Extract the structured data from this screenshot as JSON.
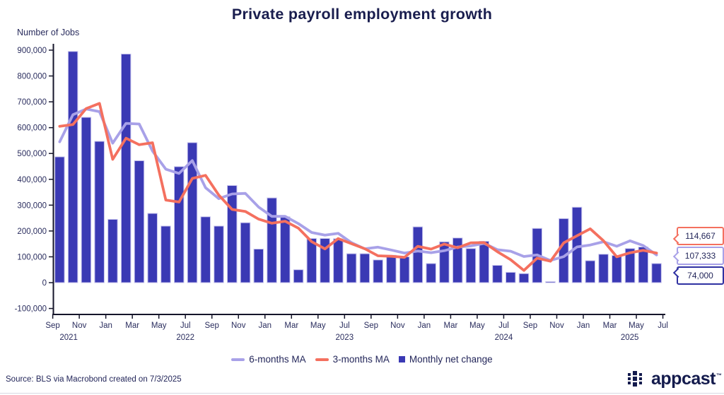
{
  "title": "Private payroll employment growth",
  "y_axis_title": "Number of Jobs",
  "source": "Source: BLS via Macrobond created on 7/3/2025",
  "colors": {
    "bar": "#3a39b4",
    "bar_outline": "#c8c5ee",
    "ma3_line": "#f4705f",
    "ma6_line": "#a8a1e8",
    "axis": "#15152a",
    "text": "#2a2d5e",
    "callout_monthly_border": "#2f31a2"
  },
  "legend": [
    {
      "label": "6-months MA",
      "marker": "line",
      "color": "#a8a1e8"
    },
    {
      "label": "3-months MA",
      "marker": "line",
      "color": "#f4705f"
    },
    {
      "label": "Monthly net change",
      "marker": "square",
      "color": "#3a39b4"
    }
  ],
  "callouts": [
    {
      "text": "114,667",
      "series": "3-months MA",
      "color": "#f4705f"
    },
    {
      "text": "107,333",
      "series": "6-months MA",
      "color": "#a8a1e8"
    },
    {
      "text": "74,000",
      "series": "Monthly net change",
      "color": "#2f31a2"
    }
  ],
  "logo": {
    "text": "appcast",
    "tm": "™"
  },
  "chart_data": {
    "type": "bar",
    "title": "Private payroll employment growth",
    "ylabel": "Number of Jobs",
    "ylim": [
      -100000,
      900000
    ],
    "y_tick_step": 100000,
    "grid": false,
    "legend_position": "bottom",
    "months": [
      "Sep 2021",
      "Oct 2021",
      "Nov 2021",
      "Dec 2021",
      "Jan 2022",
      "Feb 2022",
      "Mar 2022",
      "Apr 2022",
      "May 2022",
      "Jun 2022",
      "Jul 2022",
      "Aug 2022",
      "Sep 2022",
      "Oct 2022",
      "Nov 2022",
      "Dec 2022",
      "Jan 2023",
      "Feb 2023",
      "Mar 2023",
      "Apr 2023",
      "May 2023",
      "Jun 2023",
      "Jul 2023",
      "Aug 2023",
      "Sep 2023",
      "Oct 2023",
      "Nov 2023",
      "Dec 2023",
      "Jan 2024",
      "Feb 2024",
      "Mar 2024",
      "Apr 2024",
      "May 2024",
      "Jun 2024",
      "Jul 2024",
      "Aug 2024",
      "Sep 2024",
      "Oct 2024",
      "Nov 2024",
      "Dec 2024",
      "Jan 2025",
      "Feb 2025",
      "Mar 2025",
      "Apr 2025",
      "May 2025",
      "Jun 2025"
    ],
    "x_tick_labels": [
      "Sep",
      "Nov",
      "Jan",
      "Mar",
      "May",
      "Jul",
      "Sep",
      "Nov",
      "Jan",
      "Mar",
      "May",
      "Jul",
      "Sep",
      "Nov",
      "Jan",
      "Mar",
      "May",
      "Jul",
      "Sep",
      "Nov",
      "Jan",
      "Mar",
      "May",
      "Jul"
    ],
    "year_labels": [
      {
        "label": "2021",
        "slot": 1.2
      },
      {
        "label": "2022",
        "slot": 10
      },
      {
        "label": "2023",
        "slot": 22
      },
      {
        "label": "2024",
        "slot": 34
      },
      {
        "label": "2025",
        "slot": 43.5
      }
    ],
    "y_tick_labels": [
      "-100,000",
      "0",
      "100,000",
      "200,000",
      "300,000",
      "400,000",
      "500,000",
      "600,000",
      "700,000",
      "800,000",
      "900,000"
    ],
    "series": [
      {
        "name": "Monthly net change",
        "type": "bar",
        "color": "#3a39b4",
        "values": [
          487000,
          895000,
          640000,
          547000,
          245000,
          885000,
          472000,
          268000,
          219000,
          449000,
          542000,
          255000,
          219000,
          376000,
          232000,
          130000,
          328000,
          255000,
          50000,
          171000,
          171000,
          170000,
          112000,
          112000,
          88000,
          106000,
          100000,
          216000,
          74000,
          158000,
          173000,
          132000,
          160000,
          67000,
          40000,
          35000,
          210000,
          4000,
          248000,
          292000,
          85000,
          110000,
          105000,
          132000,
          138000,
          74000
        ]
      },
      {
        "name": "6-months MA",
        "type": "line",
        "color": "#a8a1e8",
        "values": [
          545000,
          650000,
          672000,
          662000,
          540000,
          616500,
          614000,
          509500,
          439333,
          423000,
          472500,
          367500,
          325333,
          343333,
          345500,
          292333,
          256667,
          256667,
          228500,
          194333,
          184167,
          190833,
          154833,
          131000,
          137333,
          126500,
          114667,
          122333,
          116000,
          123667,
          137833,
          142167,
          152167,
          127333,
          121667,
          101167,
          107333,
          86000,
          100667,
          138167,
          145833,
          158333,
          140833,
          162000,
          143667,
          107333
        ]
      },
      {
        "name": "3-months MA",
        "type": "line",
        "color": "#f4705f",
        "values": [
          605000,
          612000,
          674000,
          694000,
          477333,
          559000,
          534000,
          541667,
          319667,
          312000,
          403333,
          415333,
          338667,
          283333,
          275667,
          246000,
          230000,
          237667,
          211000,
          158667,
          130667,
          170667,
          151000,
          131333,
          104000,
          102000,
          98000,
          140667,
          130000,
          149333,
          135000,
          154333,
          155000,
          119667,
          89000,
          47333,
          95000,
          83000,
          154000,
          181333,
          208333,
          162333,
          100000,
          115667,
          125000,
          114667
        ]
      }
    ],
    "end_labels": {
      "3-months MA": "114,667",
      "6-months MA": "107,333",
      "Monthly net change": "74,000"
    }
  }
}
